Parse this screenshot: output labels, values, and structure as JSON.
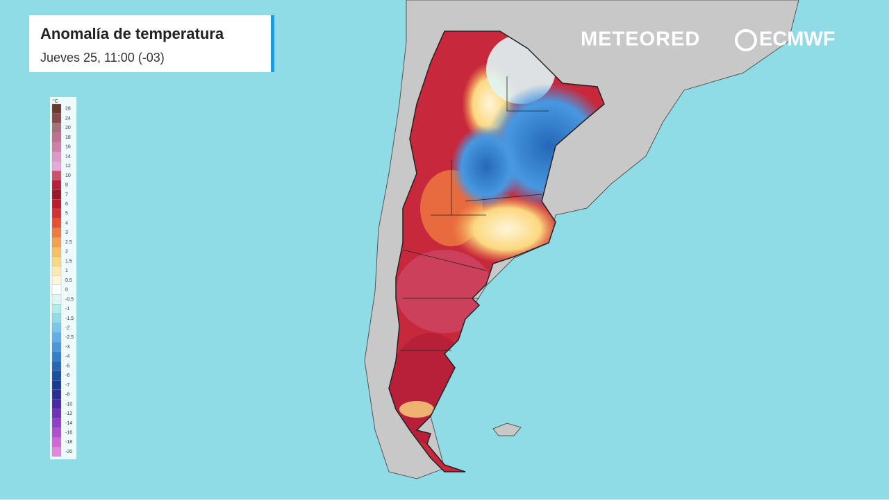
{
  "header": {
    "title": "Anomalía de temperatura",
    "subtitle": "Jueves 25, 11:00 (-03)"
  },
  "legend": {
    "unit": "°C",
    "items": [
      {
        "label": "28",
        "color": "#6b3a2a"
      },
      {
        "label": "24",
        "color": "#8a4a4a"
      },
      {
        "label": "20",
        "color": "#a8707a"
      },
      {
        "label": "18",
        "color": "#c07090"
      },
      {
        "label": "16",
        "color": "#d080a8"
      },
      {
        "label": "14",
        "color": "#e098c8"
      },
      {
        "label": "12",
        "color": "#e8a8d8"
      },
      {
        "label": "10",
        "color": "#d05070"
      },
      {
        "label": "8",
        "color": "#b8203a"
      },
      {
        "label": "7",
        "color": "#a01828"
      },
      {
        "label": "6",
        "color": "#c01a2a"
      },
      {
        "label": "5",
        "color": "#d83030"
      },
      {
        "label": "4",
        "color": "#e85030"
      },
      {
        "label": "3",
        "color": "#f07a40"
      },
      {
        "label": "2.5",
        "color": "#f5a050"
      },
      {
        "label": "2",
        "color": "#f8c060"
      },
      {
        "label": "1.5",
        "color": "#fbd880"
      },
      {
        "label": "1",
        "color": "#fdeab0"
      },
      {
        "label": "0.5",
        "color": "#fff5d8"
      },
      {
        "label": "0",
        "color": "#ffffff"
      },
      {
        "label": "-0.5",
        "color": "#e0f5f5"
      },
      {
        "label": "-1",
        "color": "#b0ece8"
      },
      {
        "label": "-1.5",
        "color": "#90dce8"
      },
      {
        "label": "-2",
        "color": "#78c8ec"
      },
      {
        "label": "-2.5",
        "color": "#60b0e8"
      },
      {
        "label": "-3",
        "color": "#4898e0"
      },
      {
        "label": "-4",
        "color": "#3080d0"
      },
      {
        "label": "-5",
        "color": "#2468b8"
      },
      {
        "label": "-6",
        "color": "#1a50a0"
      },
      {
        "label": "-7",
        "color": "#183c90"
      },
      {
        "label": "-8",
        "color": "#2a3098"
      },
      {
        "label": "-10",
        "color": "#4a2aa8"
      },
      {
        "label": "-12",
        "color": "#7030b8"
      },
      {
        "label": "-14",
        "color": "#9040c8"
      },
      {
        "label": "-16",
        "color": "#b050d0"
      },
      {
        "label": "-18",
        "color": "#d068d8"
      },
      {
        "label": "-20",
        "color": "#e088e0"
      }
    ]
  },
  "logos": {
    "meteored": "METEORED",
    "ecmwf": "ECMWF"
  }
}
